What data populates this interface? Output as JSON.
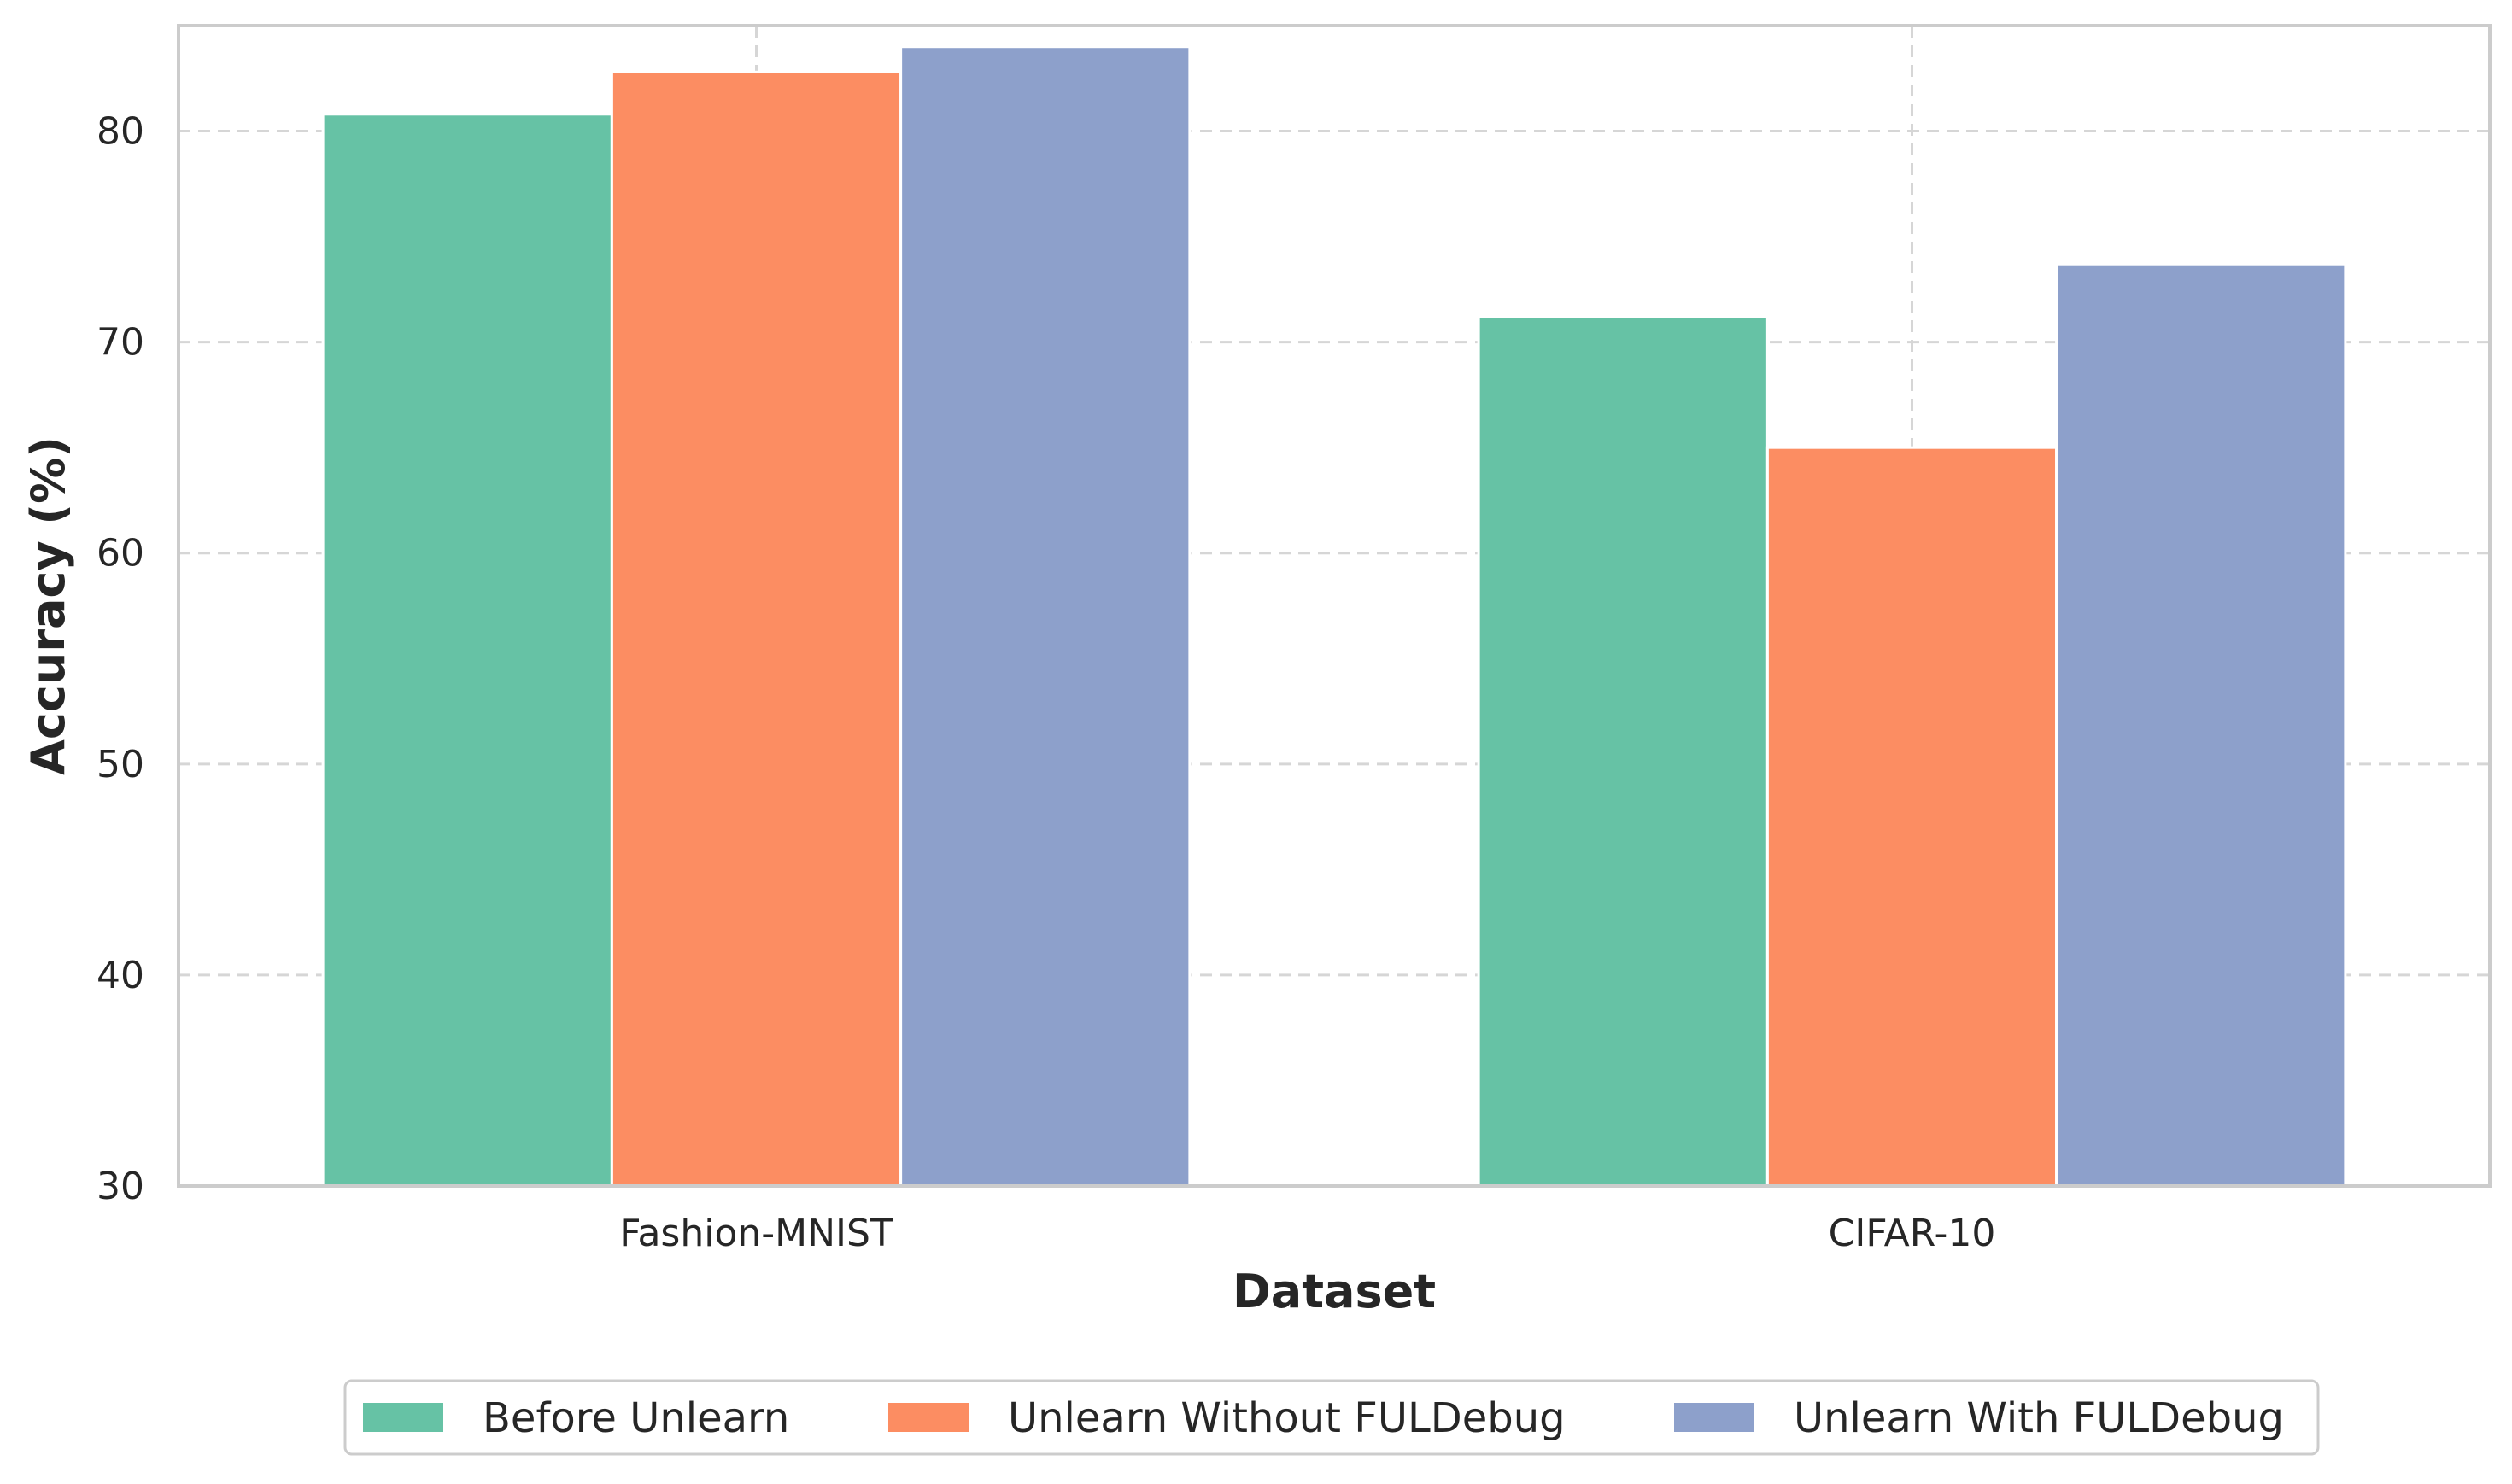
{
  "chart_data": {
    "type": "bar",
    "title": "",
    "xlabel": "Dataset",
    "ylabel": "Accuracy (%)",
    "categories": [
      "Fashion-MNIST",
      "CIFAR-10"
    ],
    "series": [
      {
        "name": "Before Unlearn",
        "values": [
          80.8,
          71.2
        ],
        "color": "#66c2a5"
      },
      {
        "name": "Unlearn Without FULDebug",
        "values": [
          82.8,
          65.0
        ],
        "color": "#fc8d62"
      },
      {
        "name": "Unlearn With FULDebug",
        "values": [
          84.0,
          73.7
        ],
        "color": "#8da0cb"
      }
    ],
    "ylim": [
      30,
      85
    ],
    "yticks": [
      30,
      40,
      50,
      60,
      70,
      80
    ],
    "grid": true,
    "legend_position": "bottom-center"
  }
}
